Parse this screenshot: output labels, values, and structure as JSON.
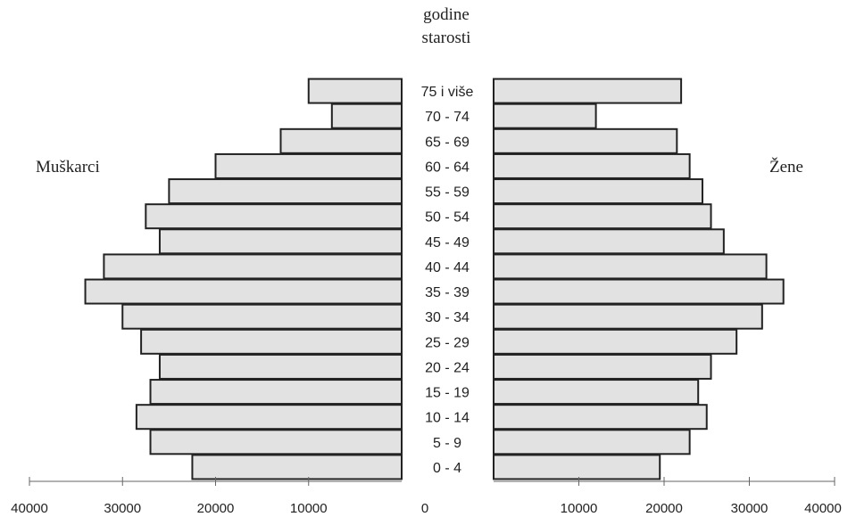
{
  "chart_data": {
    "type": "bar",
    "orientation": "horizontal",
    "subtype": "population-pyramid",
    "title_line1": "godine",
    "title_line2": "starosti",
    "categories": [
      "75 i više",
      "70 - 74",
      "65 - 69",
      "60 - 64",
      "55 - 59",
      "50 - 54",
      "45 - 49",
      "40 - 44",
      "35 - 39",
      "30 - 34",
      "25 - 29",
      "20 - 24",
      "15 - 19",
      "10 - 14",
      "5 - 9",
      "0 - 4"
    ],
    "series": [
      {
        "name": "Muškarci",
        "side": "left",
        "values": [
          10000,
          7500,
          13000,
          20000,
          25000,
          27500,
          26000,
          32000,
          34000,
          30000,
          28000,
          26000,
          27000,
          28500,
          27000,
          22500
        ]
      },
      {
        "name": "Žene",
        "side": "right",
        "values": [
          22000,
          12000,
          21500,
          23000,
          24500,
          25500,
          27000,
          32000,
          34000,
          31500,
          28500,
          25500,
          24000,
          25000,
          23000,
          19500
        ]
      }
    ],
    "xlim": [
      0,
      40000
    ],
    "left_ticks": [
      "40000",
      "30000",
      "20000",
      "10000"
    ],
    "right_ticks": [
      "0",
      "10000",
      "20000",
      "30000",
      "40000"
    ],
    "grid": false,
    "colors": {
      "bar_fill": "#e2e2e2",
      "bar_stroke": "#222222"
    }
  }
}
